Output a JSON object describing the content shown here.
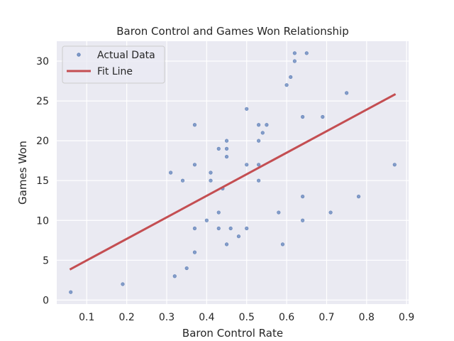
{
  "chart_data": {
    "type": "scatter",
    "title": "Baron Control and Games Won Relationship",
    "xlabel": "Baron Control Rate",
    "ylabel": "Games Won",
    "xlim": [
      0.025,
      0.905
    ],
    "ylim": [
      -0.5,
      32.5
    ],
    "xticks": [
      0.1,
      0.2,
      0.3,
      0.4,
      0.5,
      0.6,
      0.7,
      0.8,
      0.9
    ],
    "xtick_labels": [
      "0.1",
      "0.2",
      "0.3",
      "0.4",
      "0.5",
      "0.6",
      "0.7",
      "0.8",
      "0.9"
    ],
    "yticks": [
      0,
      5,
      10,
      15,
      20,
      25,
      30
    ],
    "ytick_labels": [
      "0",
      "5",
      "10",
      "15",
      "20",
      "25",
      "30"
    ],
    "grid": true,
    "legend": "top-left",
    "series": [
      {
        "name": "Actual Data",
        "kind": "scatter",
        "color": "#4c72b0",
        "points": [
          [
            0.06,
            1
          ],
          [
            0.19,
            2
          ],
          [
            0.31,
            16
          ],
          [
            0.32,
            3
          ],
          [
            0.34,
            15
          ],
          [
            0.35,
            4
          ],
          [
            0.37,
            22
          ],
          [
            0.37,
            17
          ],
          [
            0.37,
            9
          ],
          [
            0.37,
            6
          ],
          [
            0.4,
            10
          ],
          [
            0.41,
            16
          ],
          [
            0.41,
            15
          ],
          [
            0.43,
            19
          ],
          [
            0.43,
            11
          ],
          [
            0.43,
            9
          ],
          [
            0.44,
            14
          ],
          [
            0.45,
            20
          ],
          [
            0.45,
            19
          ],
          [
            0.45,
            18
          ],
          [
            0.45,
            7
          ],
          [
            0.46,
            9
          ],
          [
            0.48,
            8
          ],
          [
            0.5,
            24
          ],
          [
            0.5,
            17
          ],
          [
            0.5,
            9
          ],
          [
            0.53,
            22
          ],
          [
            0.53,
            20
          ],
          [
            0.53,
            17
          ],
          [
            0.53,
            15
          ],
          [
            0.54,
            21
          ],
          [
            0.55,
            22
          ],
          [
            0.58,
            11
          ],
          [
            0.59,
            7
          ],
          [
            0.6,
            27
          ],
          [
            0.61,
            28
          ],
          [
            0.62,
            31
          ],
          [
            0.62,
            30
          ],
          [
            0.64,
            23
          ],
          [
            0.64,
            13
          ],
          [
            0.64,
            10
          ],
          [
            0.65,
            31
          ],
          [
            0.69,
            23
          ],
          [
            0.71,
            11
          ],
          [
            0.75,
            26
          ],
          [
            0.78,
            13
          ],
          [
            0.87,
            17
          ]
        ]
      },
      {
        "name": "Fit Line",
        "kind": "line",
        "color": "#c44e52",
        "points": [
          [
            0.06,
            3.9
          ],
          [
            0.87,
            25.8
          ]
        ]
      }
    ]
  }
}
